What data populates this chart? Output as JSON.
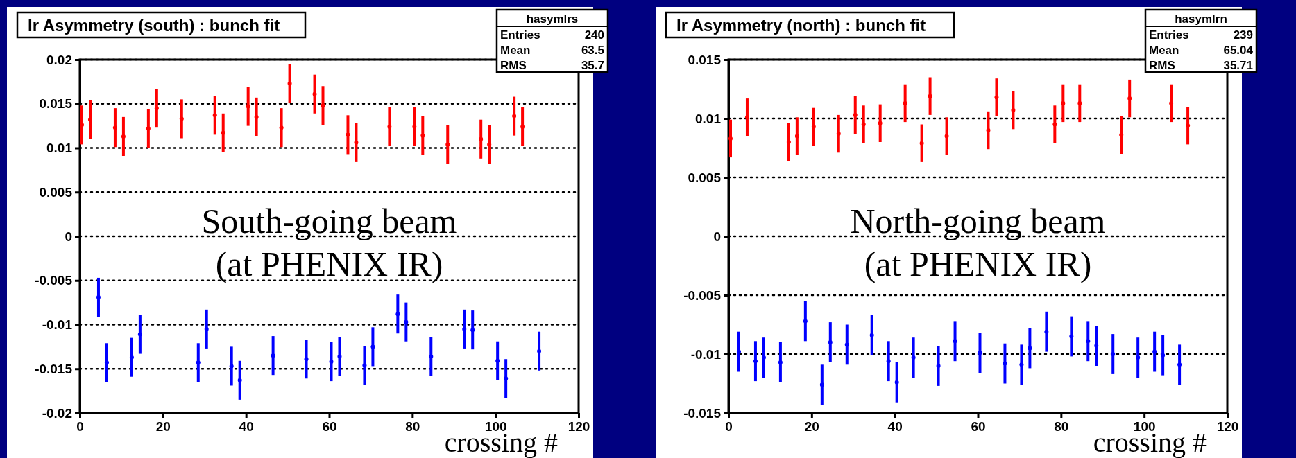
{
  "chart_data": [
    {
      "type": "scatter",
      "title": "Ir Asymmetry (south) : bunch fit",
      "xlabel": "crossing #",
      "annotations": [
        "South-going beam",
        "(at PHENIX IR)",
        "hasymlrs",
        "Entries 240",
        "Mean 63.5",
        "RMS 35.7"
      ],
      "xlim": [
        0,
        120
      ],
      "xticks": [
        0,
        20,
        40,
        60,
        80,
        100,
        120
      ],
      "ylim": [
        -0.02,
        0.02
      ],
      "yticks": [
        -0.02,
        -0.015,
        -0.01,
        -0.005,
        0,
        0.005,
        0.01,
        0.015,
        0.02
      ],
      "grid": "y",
      "marker": "circle",
      "series": [
        {
          "color": "#ff0000",
          "x": [
            0.5,
            2.5,
            8.5,
            10.5,
            16.5,
            18.5,
            24.5,
            32.5,
            34.5,
            40.5,
            42.5,
            48.5,
            50.5,
            56.5,
            58.5,
            64.5,
            66.5,
            74.5,
            80.5,
            82.5,
            88.5,
            96.5,
            98.5,
            104.5,
            106.5
          ],
          "values": [
            0.0126,
            0.0132,
            0.0123,
            0.0113,
            0.0122,
            0.0145,
            0.0133,
            0.0137,
            0.0117,
            0.0147,
            0.0135,
            0.0123,
            0.0173,
            0.0161,
            0.0148,
            0.0115,
            0.0106,
            0.0124,
            0.0124,
            0.0114,
            0.0104,
            0.011,
            0.0104,
            0.0136,
            0.0124
          ],
          "errors": [
            0.0022,
            0.0022,
            0.0022,
            0.0022,
            0.0022,
            0.0022,
            0.0022,
            0.0022,
            0.0022,
            0.0022,
            0.0022,
            0.0022,
            0.0022,
            0.0022,
            0.0022,
            0.0022,
            0.0022,
            0.0022,
            0.0022,
            0.0022,
            0.0022,
            0.0022,
            0.0022,
            0.0022,
            0.0022
          ]
        },
        {
          "color": "#0000ff",
          "x": [
            4.5,
            6.5,
            12.5,
            14.5,
            28.5,
            30.5,
            36.5,
            38.5,
            46.5,
            54.5,
            60.5,
            62.5,
            68.5,
            70.5,
            76.5,
            78.5,
            84.5,
            92.5,
            94.5,
            100.5,
            102.5,
            110.5
          ],
          "values": [
            -0.0069,
            -0.0143,
            -0.0137,
            -0.0111,
            -0.0143,
            -0.0105,
            -0.0147,
            -0.0163,
            -0.0135,
            -0.0139,
            -0.0142,
            -0.0136,
            -0.0146,
            -0.0125,
            -0.0088,
            -0.0097,
            -0.0136,
            -0.0105,
            -0.0106,
            -0.0141,
            -0.0161,
            -0.013
          ],
          "errors": [
            0.0022,
            0.0022,
            0.0022,
            0.0022,
            0.0022,
            0.0022,
            0.0022,
            0.0022,
            0.0022,
            0.0022,
            0.0022,
            0.0022,
            0.0022,
            0.0022,
            0.0022,
            0.0022,
            0.0022,
            0.0022,
            0.0022,
            0.0022,
            0.0022,
            0.0022
          ]
        }
      ]
    },
    {
      "type": "scatter",
      "title": "Ir Asymmetry (north) : bunch fit",
      "xlabel": "crossing #",
      "annotations": [
        "North-going beam",
        "(at PHENIX IR)",
        "hasymlrn",
        "Entries 239",
        "Mean 65.04",
        "RMS 35.71"
      ],
      "xlim": [
        0,
        120
      ],
      "xticks": [
        0,
        20,
        40,
        60,
        80,
        100,
        120
      ],
      "ylim": [
        -0.015,
        0.015
      ],
      "yticks": [
        -0.015,
        -0.01,
        -0.005,
        0,
        0.005,
        0.01,
        0.015
      ],
      "grid": "y",
      "marker": "circle",
      "series": [
        {
          "color": "#ff0000",
          "x": [
            0.5,
            4.5,
            14.5,
            16.5,
            20.5,
            26.5,
            30.5,
            32.5,
            36.5,
            42.5,
            46.5,
            48.5,
            52.5,
            62.5,
            64.5,
            68.5,
            78.5,
            80.5,
            84.5,
            94.5,
            96.5,
            106.5,
            110.5
          ],
          "values": [
            0.0083,
            0.0101,
            0.008,
            0.0085,
            0.0093,
            0.0087,
            0.0103,
            0.0095,
            0.0096,
            0.0113,
            0.0079,
            0.0119,
            0.0085,
            0.009,
            0.0118,
            0.0107,
            0.0095,
            0.0113,
            0.0113,
            0.0086,
            0.0117,
            0.0113,
            0.0094
          ],
          "errors": [
            0.0016,
            0.0016,
            0.0016,
            0.0016,
            0.0016,
            0.0016,
            0.0016,
            0.0016,
            0.0016,
            0.0016,
            0.0016,
            0.0016,
            0.0016,
            0.0016,
            0.0016,
            0.0016,
            0.0016,
            0.0016,
            0.0016,
            0.0016,
            0.0016,
            0.0016,
            0.0016
          ]
        },
        {
          "color": "#0000ff",
          "x": [
            2.5,
            6.5,
            8.5,
            12.5,
            18.5,
            22.5,
            24.5,
            28.5,
            34.5,
            38.5,
            40.5,
            44.5,
            50.5,
            54.5,
            60.5,
            66.5,
            70.5,
            72.5,
            76.5,
            82.5,
            86.5,
            88.5,
            92.5,
            98.5,
            102.5,
            104.5,
            108.5
          ],
          "values": [
            -0.0098,
            -0.0106,
            -0.0103,
            -0.0107,
            -0.0072,
            -0.0126,
            -0.009,
            -0.0092,
            -0.0084,
            -0.0106,
            -0.0124,
            -0.0103,
            -0.011,
            -0.0089,
            -0.0099,
            -0.0108,
            -0.0109,
            -0.0095,
            -0.0081,
            -0.0085,
            -0.0089,
            -0.0093,
            -0.01,
            -0.0103,
            -0.0098,
            -0.0101,
            -0.0109
          ],
          "errors": [
            0.0017,
            0.0017,
            0.0017,
            0.0017,
            0.0017,
            0.0017,
            0.0017,
            0.0017,
            0.0017,
            0.0017,
            0.0017,
            0.0017,
            0.0017,
            0.0017,
            0.0017,
            0.0017,
            0.0017,
            0.0017,
            0.0017,
            0.0017,
            0.0017,
            0.0017,
            0.0017,
            0.0017,
            0.0017,
            0.0017,
            0.0017
          ]
        }
      ]
    }
  ]
}
